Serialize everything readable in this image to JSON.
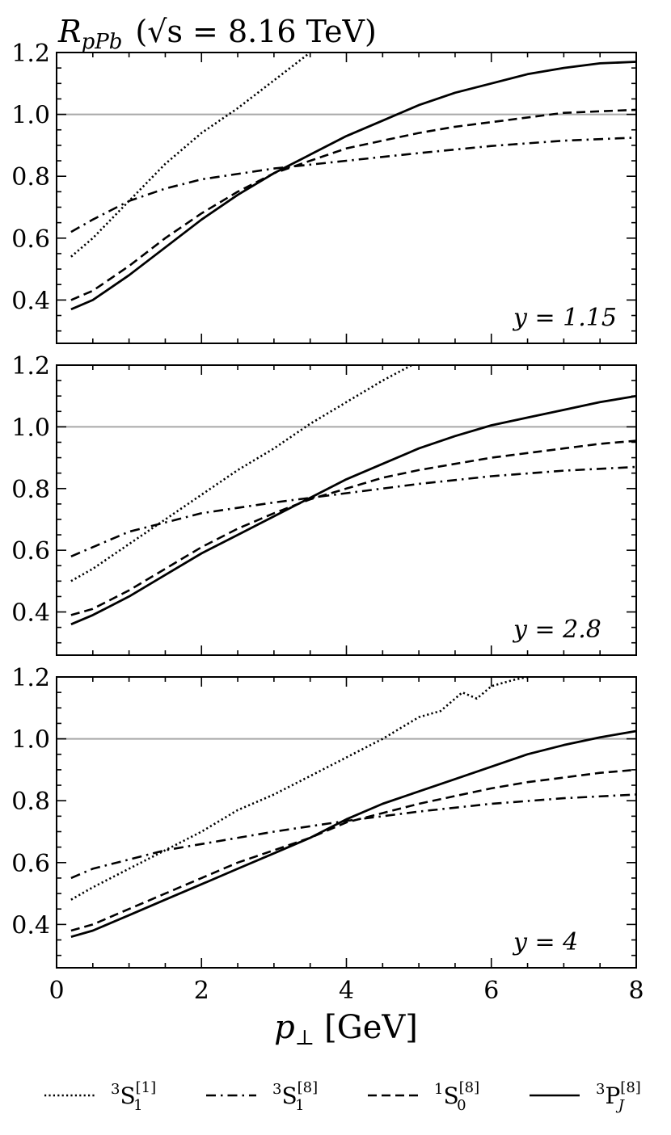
{
  "figure": {
    "title_main": "R",
    "title_sub": "pPb",
    "title_rest": "(√s = 8.16 TeV)",
    "xlabel": "p",
    "xlabel_sub": "⊥",
    "xlabel_unit": "[GeV]",
    "legend": [
      {
        "pre": "3",
        "base": "S",
        "sub": "1",
        "sup": "[1]",
        "dash": "dotted"
      },
      {
        "pre": "3",
        "base": "S",
        "sub": "1",
        "sup": "[8]",
        "dash": "dashdot"
      },
      {
        "pre": "1",
        "base": "S",
        "sub": "0",
        "sup": "[8]",
        "dash": "dashed"
      },
      {
        "pre": "3",
        "base": "P",
        "sub": "J",
        "sup": "[8]",
        "dash": "solid"
      }
    ]
  },
  "chart_data": [
    {
      "type": "line",
      "annotation": "y = 1.15",
      "xlim": [
        0,
        8
      ],
      "ylim": [
        0.26,
        1.2
      ],
      "yticks": [
        0.4,
        0.6,
        0.8,
        1.0,
        1.2
      ],
      "ytick_labels": [
        "0.4",
        "0.6",
        "0.8",
        "1.0",
        "1.2"
      ],
      "reference_line": 1.0,
      "series": [
        {
          "key": "3S1-1",
          "dash": "dotted",
          "x": [
            0.2,
            0.5,
            1.0,
            1.5,
            2.0,
            2.5,
            3.0,
            3.5
          ],
          "y": [
            0.54,
            0.6,
            0.72,
            0.84,
            0.94,
            1.02,
            1.11,
            1.2
          ]
        },
        {
          "key": "3S1-8",
          "dash": "dashdot",
          "x": [
            0.2,
            0.5,
            1.0,
            1.5,
            2.0,
            3.0,
            4.0,
            5.0,
            6.0,
            7.0,
            8.0
          ],
          "y": [
            0.62,
            0.66,
            0.72,
            0.76,
            0.79,
            0.825,
            0.85,
            0.875,
            0.898,
            0.915,
            0.925
          ]
        },
        {
          "key": "1S0-8",
          "dash": "dashed",
          "x": [
            0.2,
            0.5,
            1.0,
            1.5,
            2.0,
            2.5,
            3.0,
            3.5,
            4.0,
            4.5,
            5.0,
            5.5,
            6.0,
            6.5,
            7.0,
            7.5,
            8.0
          ],
          "y": [
            0.4,
            0.43,
            0.51,
            0.6,
            0.68,
            0.75,
            0.81,
            0.85,
            0.89,
            0.915,
            0.94,
            0.96,
            0.975,
            0.99,
            1.005,
            1.01,
            1.015
          ]
        },
        {
          "key": "3PJ-8",
          "dash": "solid",
          "x": [
            0.2,
            0.5,
            1.0,
            1.5,
            2.0,
            2.5,
            3.0,
            3.5,
            4.0,
            4.5,
            5.0,
            5.5,
            6.0,
            6.5,
            7.0,
            7.5,
            8.0
          ],
          "y": [
            0.37,
            0.4,
            0.48,
            0.57,
            0.66,
            0.74,
            0.81,
            0.87,
            0.93,
            0.98,
            1.03,
            1.07,
            1.1,
            1.13,
            1.15,
            1.165,
            1.17
          ]
        }
      ]
    },
    {
      "type": "line",
      "annotation": "y = 2.8",
      "xlim": [
        0,
        8
      ],
      "ylim": [
        0.26,
        1.2
      ],
      "yticks": [
        0.4,
        0.6,
        0.8,
        1.0,
        1.2
      ],
      "ytick_labels": [
        "0.4",
        "0.6",
        "0.8",
        "1.0",
        "1.2"
      ],
      "reference_line": 1.0,
      "series": [
        {
          "key": "3S1-1",
          "dash": "dotted",
          "x": [
            0.2,
            0.5,
            1.0,
            1.5,
            2.0,
            2.5,
            3.0,
            3.5,
            4.0,
            4.5,
            4.9
          ],
          "y": [
            0.5,
            0.54,
            0.62,
            0.7,
            0.78,
            0.86,
            0.93,
            1.01,
            1.08,
            1.15,
            1.2
          ]
        },
        {
          "key": "3S1-8",
          "dash": "dashdot",
          "x": [
            0.2,
            0.5,
            1.0,
            1.5,
            2.0,
            3.0,
            4.0,
            5.0,
            6.0,
            7.0,
            8.0
          ],
          "y": [
            0.58,
            0.61,
            0.66,
            0.69,
            0.72,
            0.755,
            0.785,
            0.815,
            0.84,
            0.858,
            0.87
          ]
        },
        {
          "key": "1S0-8",
          "dash": "dashed",
          "x": [
            0.2,
            0.5,
            1.0,
            1.5,
            2.0,
            2.5,
            3.0,
            3.5,
            4.0,
            4.5,
            5.0,
            5.5,
            6.0,
            6.5,
            7.0,
            7.5,
            8.0
          ],
          "y": [
            0.39,
            0.41,
            0.47,
            0.54,
            0.61,
            0.67,
            0.72,
            0.765,
            0.8,
            0.835,
            0.86,
            0.88,
            0.9,
            0.915,
            0.93,
            0.945,
            0.955
          ]
        },
        {
          "key": "3PJ-8",
          "dash": "solid",
          "x": [
            0.2,
            0.5,
            1.0,
            1.5,
            2.0,
            2.5,
            3.0,
            3.5,
            4.0,
            4.5,
            5.0,
            5.5,
            6.0,
            6.5,
            7.0,
            7.5,
            8.0
          ],
          "y": [
            0.36,
            0.39,
            0.45,
            0.52,
            0.59,
            0.65,
            0.71,
            0.77,
            0.83,
            0.88,
            0.93,
            0.97,
            1.005,
            1.03,
            1.055,
            1.08,
            1.1
          ]
        }
      ]
    },
    {
      "type": "line",
      "annotation": "y = 4",
      "xlim": [
        0,
        8
      ],
      "ylim": [
        0.26,
        1.2
      ],
      "yticks": [
        0.4,
        0.6,
        0.8,
        1.0,
        1.2
      ],
      "ytick_labels": [
        "0.4",
        "0.6",
        "0.8",
        "1.0",
        "1.2"
      ],
      "xticks": [
        0,
        2,
        4,
        6,
        8
      ],
      "xtick_labels": [
        "0",
        "2",
        "4",
        "6",
        "8"
      ],
      "reference_line": 1.0,
      "series": [
        {
          "key": "3S1-1",
          "dash": "dotted",
          "x": [
            0.2,
            0.5,
            1.0,
            1.5,
            2.0,
            2.5,
            3.0,
            3.5,
            4.0,
            4.5,
            5.0,
            5.3,
            5.6,
            5.8,
            6.0,
            6.3,
            6.5
          ],
          "y": [
            0.48,
            0.52,
            0.58,
            0.64,
            0.7,
            0.77,
            0.82,
            0.88,
            0.94,
            1.0,
            1.07,
            1.09,
            1.15,
            1.13,
            1.17,
            1.19,
            1.2
          ]
        },
        {
          "key": "3S1-8",
          "dash": "dashdot",
          "x": [
            0.2,
            0.5,
            1.0,
            1.5,
            2.0,
            3.0,
            4.0,
            5.0,
            6.0,
            7.0,
            8.0
          ],
          "y": [
            0.55,
            0.58,
            0.61,
            0.64,
            0.66,
            0.7,
            0.735,
            0.765,
            0.79,
            0.808,
            0.82
          ]
        },
        {
          "key": "1S0-8",
          "dash": "dashed",
          "x": [
            0.2,
            0.5,
            1.0,
            1.5,
            2.0,
            2.5,
            3.0,
            3.5,
            4.0,
            4.5,
            5.0,
            5.5,
            6.0,
            6.5,
            7.0,
            7.5,
            8.0
          ],
          "y": [
            0.38,
            0.4,
            0.45,
            0.5,
            0.55,
            0.6,
            0.64,
            0.68,
            0.73,
            0.76,
            0.79,
            0.815,
            0.84,
            0.86,
            0.875,
            0.89,
            0.9
          ]
        },
        {
          "key": "3PJ-8",
          "dash": "solid",
          "x": [
            0.2,
            0.5,
            1.0,
            1.5,
            2.0,
            2.5,
            3.0,
            3.5,
            4.0,
            4.5,
            5.0,
            5.5,
            6.0,
            6.5,
            7.0,
            7.5,
            8.0
          ],
          "y": [
            0.36,
            0.38,
            0.43,
            0.48,
            0.53,
            0.58,
            0.63,
            0.68,
            0.74,
            0.79,
            0.83,
            0.87,
            0.91,
            0.95,
            0.98,
            1.005,
            1.025
          ]
        }
      ]
    }
  ]
}
